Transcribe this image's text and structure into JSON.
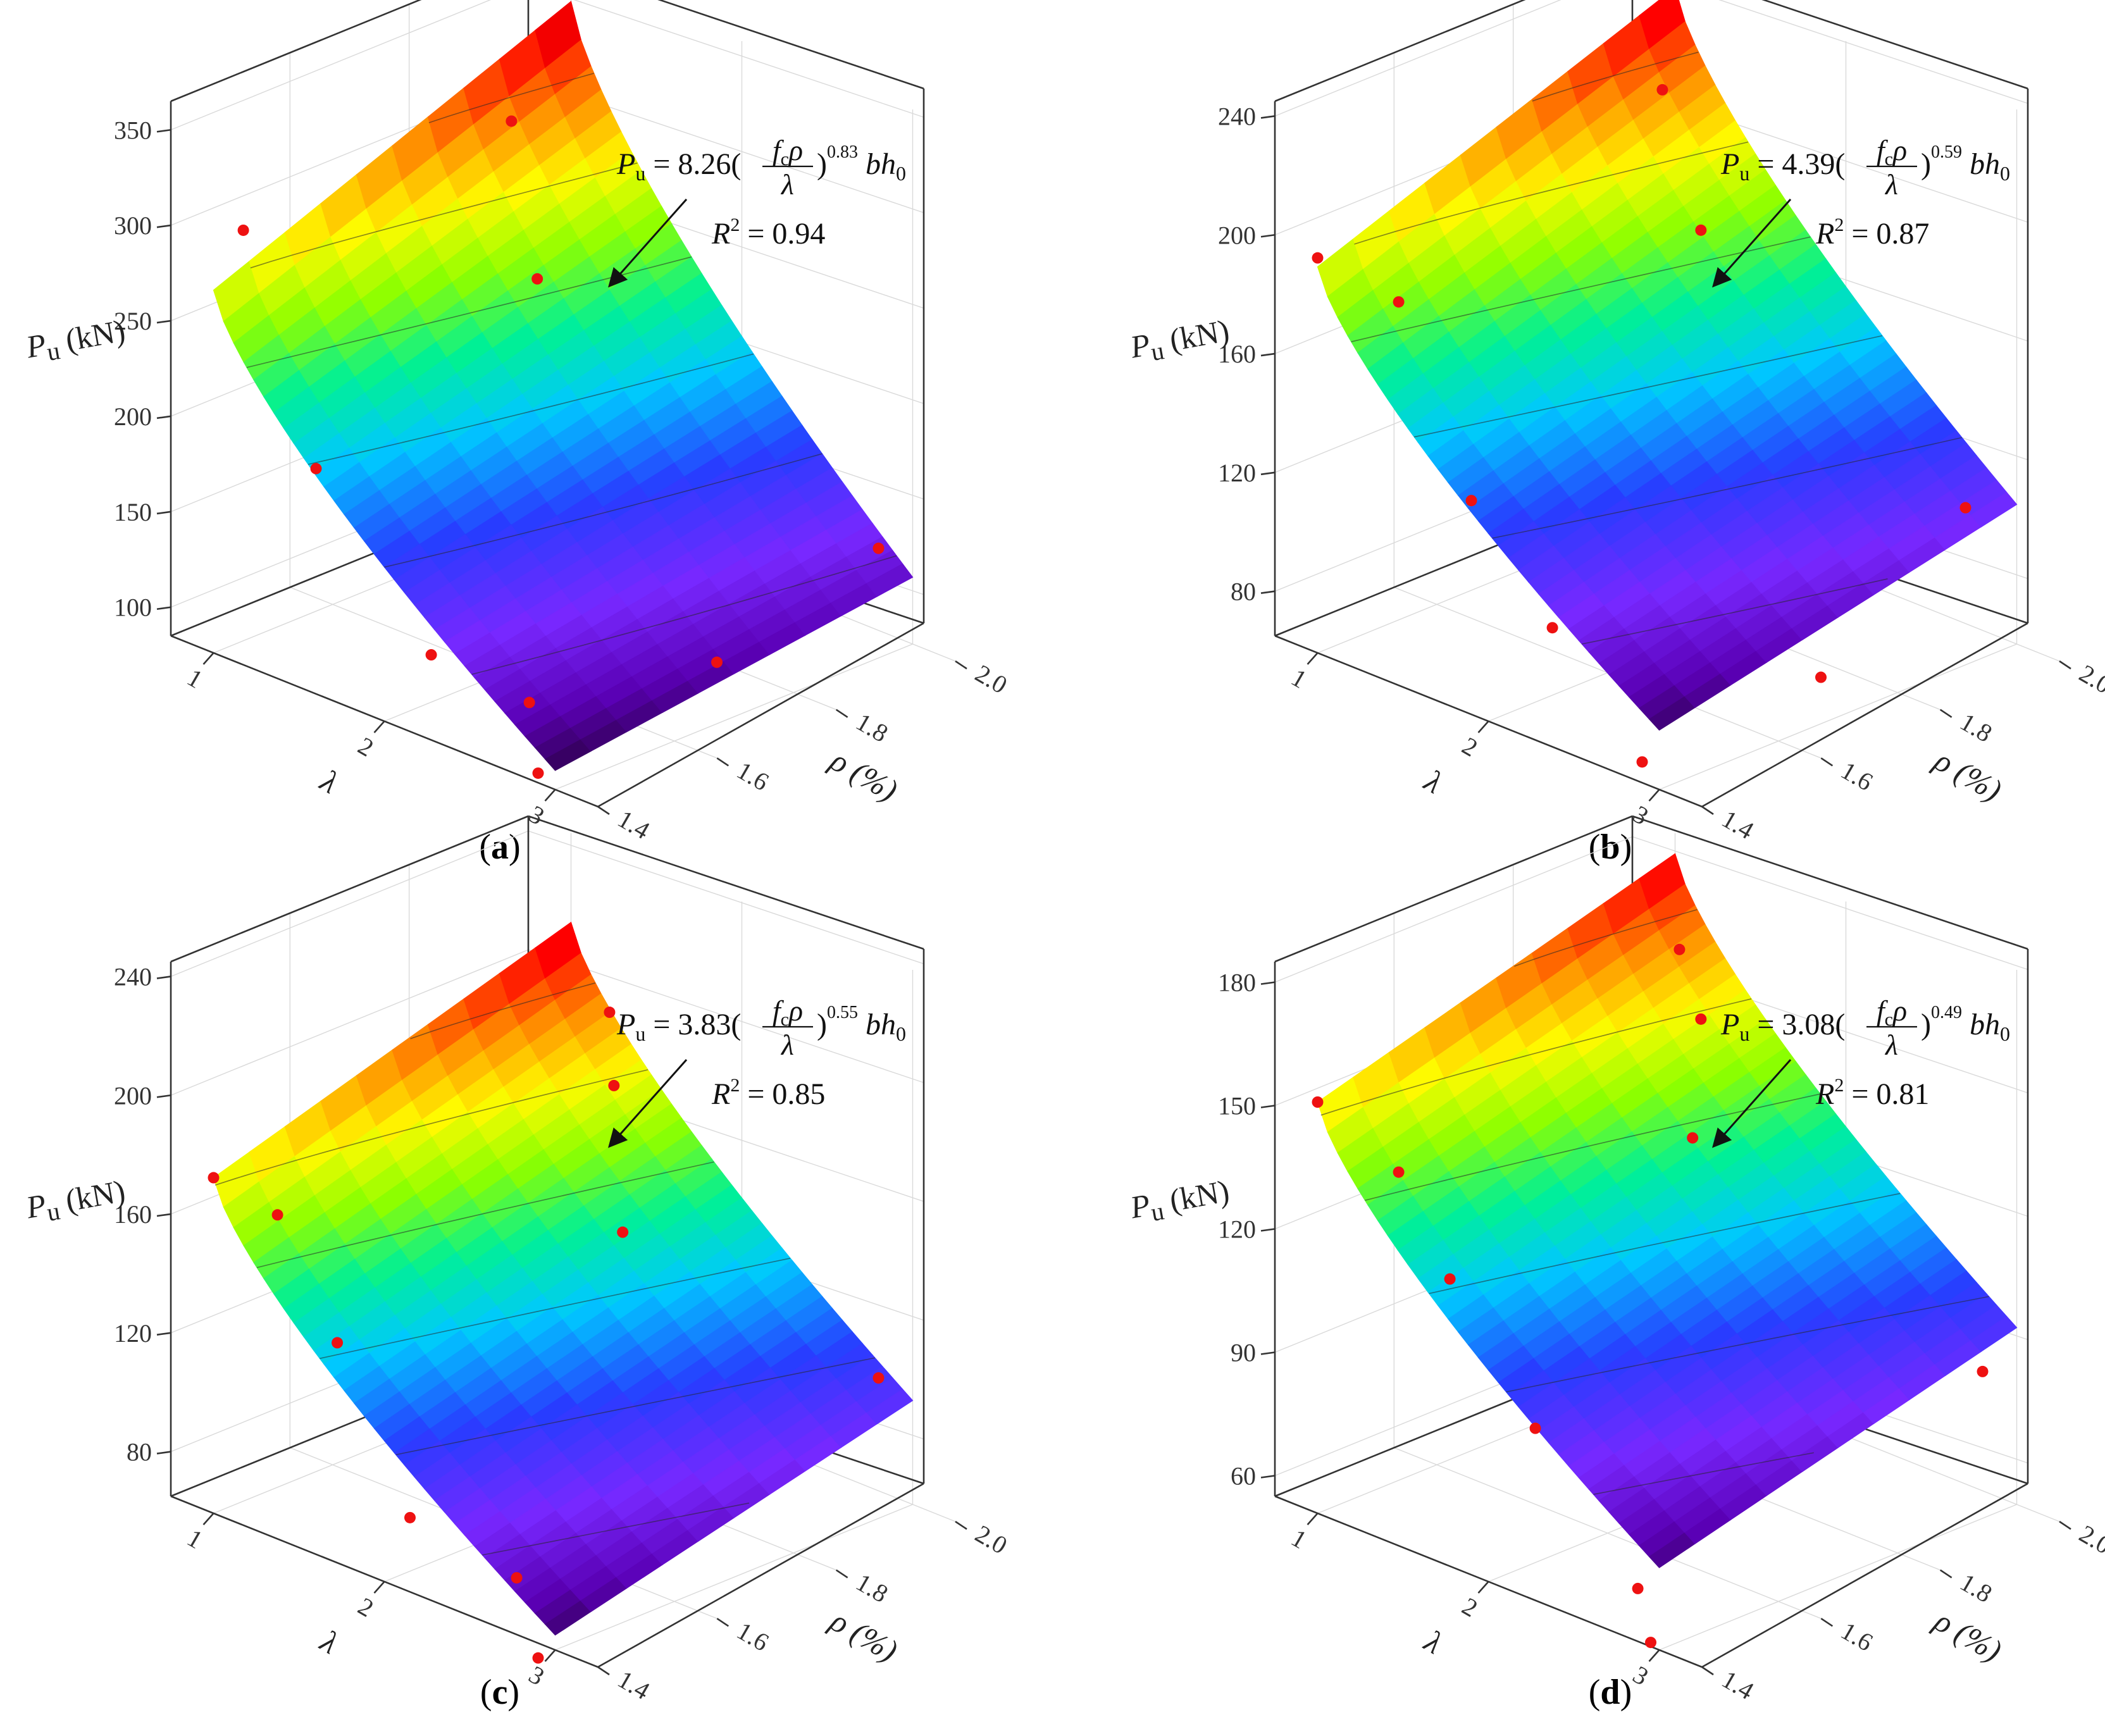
{
  "chart_data": [
    {
      "type": "surface3d",
      "caption_letter": "a",
      "zlabel_main": "P",
      "zlabel_sub": "u",
      "zlabel_unit": "(kN)",
      "xlabel": "λ",
      "ylabel": "ρ (%)",
      "x_ticks": [
        1,
        2,
        3
      ],
      "y_ticks": [
        1.4,
        1.6,
        1.8,
        2.0
      ],
      "z_ticks": [
        100,
        150,
        200,
        250,
        300,
        350
      ],
      "zlim": [
        85,
        365
      ],
      "equation": {
        "lhs": "P",
        "lhs_sub": "u",
        "coef": "8.26",
        "numer": "f",
        "numer_sub": "c",
        "numer_rho": "ρ",
        "denom": "λ",
        "exponent": "0.83",
        "tail": "bh",
        "tail_sub": "0"
      },
      "r2_label": "R",
      "r2_sup": "2",
      "r2_value": "0.94",
      "surface_z_corners": {
        "x1_y1.4": 275,
        "x1_y2.0": 350,
        "x3_y1.4": 95,
        "x3_y2.0": 120
      },
      "points": [
        {
          "x": 1.0,
          "y": 1.45,
          "z": 300
        },
        {
          "x": 1.0,
          "y": 1.9,
          "z": 300
        },
        {
          "x": 1.5,
          "y": 1.8,
          "z": 248
        },
        {
          "x": 1.6,
          "y": 1.4,
          "z": 203
        },
        {
          "x": 2.1,
          "y": 1.45,
          "z": 117
        },
        {
          "x": 2.5,
          "y": 1.5,
          "z": 100
        },
        {
          "x": 2.9,
          "y": 1.4,
          "z": 90
        },
        {
          "x": 2.9,
          "y": 1.7,
          "z": 110
        },
        {
          "x": 2.8,
          "y": 2.0,
          "z": 128
        }
      ]
    },
    {
      "type": "surface3d",
      "caption_letter": "b",
      "zlabel_main": "P",
      "zlabel_sub": "u",
      "zlabel_unit": "(kN)",
      "xlabel": "λ",
      "ylabel": "ρ (%)",
      "x_ticks": [
        1,
        2,
        3
      ],
      "y_ticks": [
        1.4,
        1.6,
        1.8,
        2.0
      ],
      "z_ticks": [
        80,
        120,
        160,
        200,
        240
      ],
      "zlim": [
        65,
        245
      ],
      "equation": {
        "lhs": "P",
        "lhs_sub": "u",
        "coef": "4.39",
        "numer": "f",
        "numer_sub": "c",
        "numer_rho": "ρ",
        "denom": "λ",
        "exponent": "0.59",
        "tail": "bh",
        "tail_sub": "0"
      },
      "r2_label": "R",
      "r2_sup": "2",
      "r2_value": "0.87",
      "surface_z_corners": {
        "x1_y1.4": 195,
        "x1_y2.0": 240,
        "x3_y1.4": 85,
        "x3_y2.0": 112
      },
      "points": [
        {
          "x": 1.0,
          "y": 1.4,
          "z": 198
        },
        {
          "x": 1.3,
          "y": 1.45,
          "z": 186
        },
        {
          "x": 1.1,
          "y": 1.95,
          "z": 212
        },
        {
          "x": 1.5,
          "y": 1.9,
          "z": 178
        },
        {
          "x": 1.9,
          "y": 1.4,
          "z": 137
        },
        {
          "x": 2.2,
          "y": 1.45,
          "z": 97
        },
        {
          "x": 2.9,
          "y": 1.4,
          "z": 72
        },
        {
          "x": 2.9,
          "y": 1.7,
          "z": 76
        },
        {
          "x": 2.7,
          "y": 2.0,
          "z": 104
        }
      ]
    },
    {
      "type": "surface3d",
      "caption_letter": "c",
      "zlabel_main": "P",
      "zlabel_sub": "u",
      "zlabel_unit": "(kN)",
      "xlabel": "λ",
      "ylabel": "ρ (%)",
      "x_ticks": [
        1,
        2,
        3
      ],
      "y_ticks": [
        1.4,
        1.6,
        1.8,
        2.0
      ],
      "z_ticks": [
        80,
        120,
        160,
        200,
        240
      ],
      "zlim": [
        65,
        245
      ],
      "equation": {
        "lhs": "P",
        "lhs_sub": "u",
        "coef": "3.83",
        "numer": "f",
        "numer_sub": "c",
        "numer_rho": "ρ",
        "denom": "λ",
        "exponent": "0.55",
        "tail": "bh",
        "tail_sub": "0"
      },
      "r2_label": "R",
      "r2_sup": "2",
      "r2_value": "0.85",
      "surface_z_corners": {
        "x1_y1.4": 178,
        "x1_y2.0": 215,
        "x3_y1.4": 70,
        "x3_y2.0": 100
      },
      "points": [
        {
          "x": 1.0,
          "y": 1.4,
          "z": 178
        },
        {
          "x": 1.2,
          "y": 1.45,
          "z": 166
        },
        {
          "x": 1.55,
          "y": 1.45,
          "z": 131
        },
        {
          "x": 1.4,
          "y": 1.95,
          "z": 198
        },
        {
          "x": 1.6,
          "y": 1.9,
          "z": 182
        },
        {
          "x": 2.0,
          "y": 1.8,
          "z": 150
        },
        {
          "x": 2.15,
          "y": 1.4,
          "z": 90
        },
        {
          "x": 2.6,
          "y": 1.45,
          "z": 76
        },
        {
          "x": 2.9,
          "y": 1.4,
          "z": 60
        },
        {
          "x": 2.8,
          "y": 2.0,
          "z": 103
        }
      ]
    },
    {
      "type": "surface3d",
      "caption_letter": "d",
      "zlabel_main": "P",
      "zlabel_sub": "u",
      "zlabel_unit": "(kN)",
      "xlabel": "λ",
      "ylabel": "ρ (%)",
      "x_ticks": [
        1,
        2,
        3
      ],
      "y_ticks": [
        1.4,
        1.6,
        1.8,
        2.0
      ],
      "z_ticks": [
        60,
        90,
        120,
        150,
        180
      ],
      "zlim": [
        55,
        185
      ],
      "equation": {
        "lhs": "P",
        "lhs_sub": "u",
        "coef": "3.08",
        "numer": "f",
        "numer_sub": "c",
        "numer_rho": "ρ",
        "denom": "λ",
        "exponent": "0.49",
        "tail": "bh",
        "tail_sub": "0"
      },
      "r2_label": "R",
      "r2_sup": "2",
      "r2_value": "0.81",
      "surface_z_corners": {
        "x1_y1.4": 155,
        "x1_y2.0": 180,
        "x3_y1.4": 75,
        "x3_y2.0": 98
      },
      "points": [
        {
          "x": 1.0,
          "y": 1.4,
          "z": 155
        },
        {
          "x": 1.3,
          "y": 1.45,
          "z": 140
        },
        {
          "x": 1.6,
          "y": 1.45,
          "z": 119
        },
        {
          "x": 1.2,
          "y": 1.95,
          "z": 163
        },
        {
          "x": 1.5,
          "y": 1.9,
          "z": 154
        },
        {
          "x": 1.8,
          "y": 1.8,
          "z": 136
        },
        {
          "x": 2.1,
          "y": 1.45,
          "z": 91
        },
        {
          "x": 2.7,
          "y": 1.45,
          "z": 62
        },
        {
          "x": 2.95,
          "y": 1.4,
          "z": 56
        },
        {
          "x": 2.8,
          "y": 2.0,
          "z": 84
        }
      ]
    }
  ]
}
